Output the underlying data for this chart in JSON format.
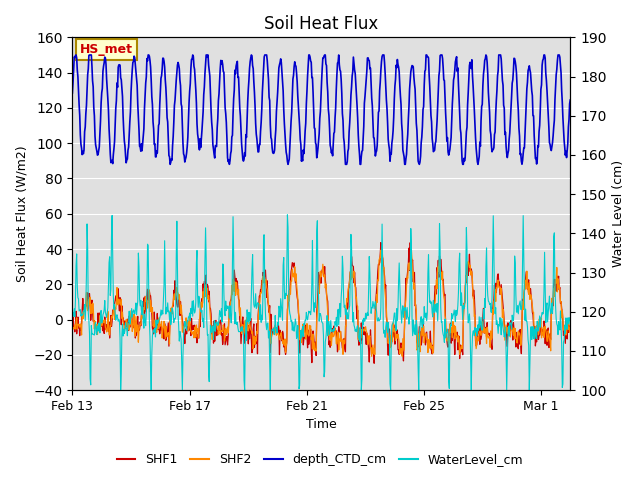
{
  "title": "Soil Heat Flux",
  "xlabel": "Time",
  "ylabel_left": "Soil Heat Flux (W/m2)",
  "ylabel_right": "Water Level (cm)",
  "ylim_left": [
    -40,
    160
  ],
  "ylim_right": [
    100,
    190
  ],
  "yticks_left": [
    -40,
    -20,
    0,
    20,
    40,
    60,
    80,
    100,
    120,
    140,
    160
  ],
  "yticks_right": [
    100,
    110,
    120,
    130,
    140,
    150,
    160,
    170,
    180,
    190
  ],
  "xtick_labels": [
    "Feb 13",
    "Feb 17",
    "Feb 21",
    "Feb 25",
    "Mar 1"
  ],
  "xtick_positions": [
    0,
    4,
    8,
    12,
    16
  ],
  "color_SHF1": "#cc0000",
  "color_SHF2": "#ff8800",
  "color_depth": "#0000cc",
  "color_water": "#00cccc",
  "annotation_text": "HS_met",
  "annotation_color": "#cc0000",
  "annotation_bg": "#ffffcc",
  "annotation_border": "#aa8800",
  "bg_color": "#e0e0e0",
  "fig_bg": "#ffffff",
  "grid_color": "#ffffff",
  "n_days": 17,
  "seed": 42
}
